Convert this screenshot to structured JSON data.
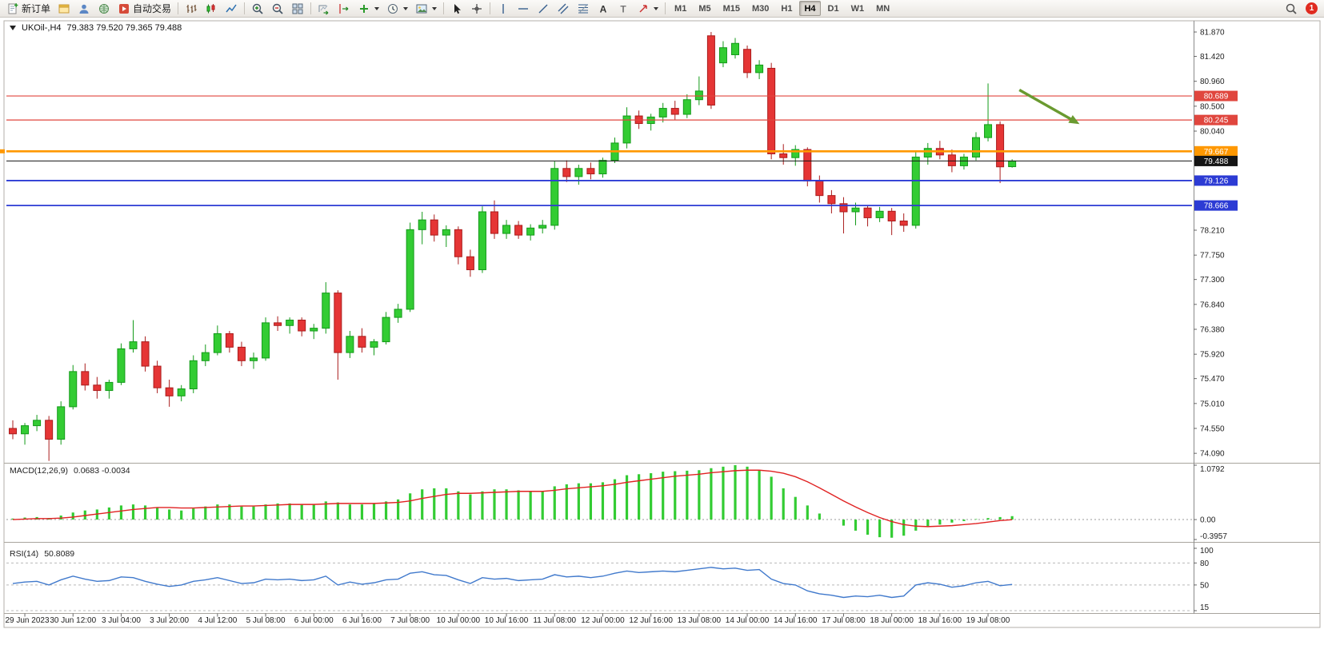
{
  "toolbar": {
    "items": [
      {
        "type": "button",
        "name": "new-order-button",
        "icon": "doc-plus",
        "label": "新订单"
      },
      {
        "type": "button",
        "name": "charts-window-button",
        "icon": "window"
      },
      {
        "type": "button",
        "name": "profiles-button",
        "icon": "person"
      },
      {
        "type": "button",
        "name": "market-watch-button",
        "icon": "globe"
      },
      {
        "type": "button",
        "name": "auto-trading-button",
        "icon": "play",
        "label": "自动交易"
      },
      {
        "type": "sep"
      },
      {
        "type": "button",
        "name": "bar-chart-button",
        "icon": "bars"
      },
      {
        "type": "button",
        "name": "candlestick-chart-button",
        "icon": "candles"
      },
      {
        "type": "button",
        "name": "line-chart-button",
        "icon": "linechart"
      },
      {
        "type": "sep"
      },
      {
        "type": "button",
        "name": "zoom-in-button",
        "icon": "zoom-in"
      },
      {
        "type": "button",
        "name": "zoom-out-button",
        "icon": "zoom-out"
      },
      {
        "type": "button",
        "name": "tile-windows-button",
        "icon": "tile"
      },
      {
        "type": "sep"
      },
      {
        "type": "button",
        "name": "auto-scroll-button",
        "icon": "autoscroll"
      },
      {
        "type": "button",
        "name": "chart-shift-button",
        "icon": "chartshift"
      },
      {
        "type": "button",
        "name": "indicators-button",
        "icon": "plus-green",
        "caret": true
      },
      {
        "type": "button",
        "name": "periods-button",
        "icon": "clock",
        "caret": true
      },
      {
        "type": "button",
        "name": "templates-button",
        "icon": "picture",
        "caret": true
      },
      {
        "type": "sep"
      },
      {
        "type": "button",
        "name": "cursor-tool-button",
        "icon": "cursor"
      },
      {
        "type": "button",
        "name": "crosshair-tool-button",
        "icon": "crosshair"
      },
      {
        "type": "sep"
      },
      {
        "type": "button",
        "name": "vertical-line-tool-button",
        "icon": "vline"
      },
      {
        "type": "button",
        "name": "horizontal-line-tool-button",
        "icon": "hline"
      },
      {
        "type": "button",
        "name": "trendline-tool-button",
        "icon": "tline"
      },
      {
        "type": "button",
        "name": "equidistant-channel-tool-button",
        "icon": "channel"
      },
      {
        "type": "button",
        "name": "fibonacci-tool-button",
        "icon": "fibo"
      },
      {
        "type": "button",
        "name": "text-tool-button",
        "icon": "text-a"
      },
      {
        "type": "button",
        "name": "text-label-tool-button",
        "icon": "label-t"
      },
      {
        "type": "button",
        "name": "arrows-tool-button",
        "icon": "arrow-tool",
        "caret": true
      },
      {
        "type": "sep"
      },
      {
        "type": "timeframes"
      }
    ],
    "timeframes": [
      "M1",
      "M5",
      "M15",
      "M30",
      "H1",
      "H4",
      "D1",
      "W1",
      "MN"
    ],
    "active_timeframe": "H4",
    "notification_count": "1"
  },
  "chart_data": [
    {
      "type": "candlestick",
      "symbol_period": "UKOil-,H4",
      "ohlc_display": "79.383 79.520 79.365 79.488",
      "ylim": [
        73.93,
        81.9
      ],
      "y_tick_labels": [
        "81.870",
        "81.420",
        "80.960",
        "80.500",
        "80.040",
        "78.210",
        "77.750",
        "77.300",
        "76.840",
        "76.380",
        "75.920",
        "75.470",
        "75.010",
        "74.550",
        "74.090"
      ],
      "x_tick_labels": [
        [
          1,
          "29 Jun 2023"
        ],
        [
          5,
          "30 Jun 12:00"
        ],
        [
          9,
          "3 Jul 04:00"
        ],
        [
          13,
          "3 Jul 20:00"
        ],
        [
          17,
          "4 Jul 12:00"
        ],
        [
          21,
          "5 Jul 08:00"
        ],
        [
          25,
          "6 Jul 00:00"
        ],
        [
          29,
          "6 Jul 16:00"
        ],
        [
          33,
          "7 Jul 08:00"
        ],
        [
          37,
          "10 Jul 00:00"
        ],
        [
          41,
          "10 Jul 16:00"
        ],
        [
          45,
          "11 Jul 08:00"
        ],
        [
          49,
          "12 Jul 00:00"
        ],
        [
          53,
          "12 Jul 16:00"
        ],
        [
          57,
          "13 Jul 08:00"
        ],
        [
          61,
          "14 Jul 00:00"
        ],
        [
          65,
          "14 Jul 16:00"
        ],
        [
          69,
          "17 Jul 08:00"
        ],
        [
          73,
          "18 Jul 00:00"
        ],
        [
          77,
          "18 Jul 16:00"
        ],
        [
          81,
          "19 Jul 08:00"
        ]
      ],
      "candles": [
        [
          74.55,
          74.7,
          74.35,
          74.45
        ],
        [
          74.45,
          74.65,
          74.25,
          74.6
        ],
        [
          74.6,
          74.8,
          74.5,
          74.7
        ],
        [
          74.7,
          74.78,
          73.95,
          74.35
        ],
        [
          74.35,
          75.05,
          74.25,
          74.95
        ],
        [
          74.95,
          75.72,
          74.9,
          75.6
        ],
        [
          75.6,
          75.75,
          75.25,
          75.35
        ],
        [
          75.35,
          75.5,
          75.1,
          75.25
        ],
        [
          75.25,
          75.45,
          75.1,
          75.4
        ],
        [
          75.4,
          76.12,
          75.35,
          76.02
        ],
        [
          76.02,
          76.55,
          75.95,
          76.15
        ],
        [
          76.15,
          76.25,
          75.6,
          75.7
        ],
        [
          75.7,
          75.8,
          75.2,
          75.3
        ],
        [
          75.3,
          75.45,
          74.95,
          75.15
        ],
        [
          75.15,
          75.35,
          75.05,
          75.28
        ],
        [
          75.28,
          75.9,
          75.2,
          75.8
        ],
        [
          75.8,
          76.1,
          75.7,
          75.95
        ],
        [
          75.95,
          76.45,
          75.9,
          76.3
        ],
        [
          76.3,
          76.35,
          75.95,
          76.05
        ],
        [
          76.05,
          76.15,
          75.7,
          75.8
        ],
        [
          75.8,
          75.95,
          75.65,
          75.85
        ],
        [
          75.85,
          76.6,
          75.8,
          76.5
        ],
        [
          76.5,
          76.62,
          76.35,
          76.45
        ],
        [
          76.45,
          76.6,
          76.3,
          76.55
        ],
        [
          76.55,
          76.6,
          76.25,
          76.35
        ],
        [
          76.35,
          76.48,
          76.2,
          76.4
        ],
        [
          76.4,
          77.25,
          76.3,
          77.05
        ],
        [
          77.05,
          77.1,
          75.45,
          75.95
        ],
        [
          75.95,
          76.35,
          75.85,
          76.25
        ],
        [
          76.25,
          76.4,
          75.95,
          76.05
        ],
        [
          76.05,
          76.2,
          75.9,
          76.15
        ],
        [
          76.15,
          76.7,
          76.1,
          76.6
        ],
        [
          76.6,
          76.85,
          76.5,
          76.75
        ],
        [
          76.75,
          78.35,
          76.7,
          78.22
        ],
        [
          78.22,
          78.55,
          77.95,
          78.4
        ],
        [
          78.4,
          78.5,
          78.0,
          78.12
        ],
        [
          78.12,
          78.3,
          77.9,
          78.22
        ],
        [
          78.22,
          78.28,
          77.58,
          77.72
        ],
        [
          77.72,
          77.85,
          77.35,
          77.48
        ],
        [
          77.48,
          78.65,
          77.42,
          78.55
        ],
        [
          78.55,
          78.76,
          78.05,
          78.15
        ],
        [
          78.15,
          78.4,
          78.05,
          78.3
        ],
        [
          78.3,
          78.38,
          78.05,
          78.12
        ],
        [
          78.12,
          78.32,
          78.02,
          78.25
        ],
        [
          78.25,
          78.4,
          78.15,
          78.3
        ],
        [
          78.3,
          79.48,
          78.22,
          79.35
        ],
        [
          79.35,
          79.5,
          79.1,
          79.2
        ],
        [
          79.2,
          79.42,
          79.05,
          79.35
        ],
        [
          79.35,
          79.46,
          79.15,
          79.25
        ],
        [
          79.25,
          79.55,
          79.18,
          79.5
        ],
        [
          79.5,
          79.92,
          79.45,
          79.82
        ],
        [
          79.82,
          80.48,
          79.72,
          80.32
        ],
        [
          80.32,
          80.42,
          80.08,
          80.18
        ],
        [
          80.18,
          80.36,
          80.05,
          80.3
        ],
        [
          80.3,
          80.56,
          80.2,
          80.46
        ],
        [
          80.46,
          80.6,
          80.25,
          80.35
        ],
        [
          80.35,
          80.72,
          80.28,
          80.62
        ],
        [
          80.62,
          81.05,
          80.52,
          80.78
        ],
        [
          81.8,
          81.87,
          80.45,
          80.52
        ],
        [
          81.3,
          81.7,
          81.22,
          81.58
        ],
        [
          81.45,
          81.76,
          81.38,
          81.66
        ],
        [
          81.55,
          81.62,
          81.02,
          81.12
        ],
        [
          81.12,
          81.35,
          81.0,
          81.26
        ],
        [
          81.2,
          81.3,
          79.52,
          79.62
        ],
        [
          79.62,
          79.8,
          79.42,
          79.55
        ],
        [
          79.55,
          79.78,
          79.4,
          79.7
        ],
        [
          79.7,
          79.74,
          79.02,
          79.12
        ],
        [
          79.12,
          79.22,
          78.72,
          78.85
        ],
        [
          78.85,
          78.95,
          78.52,
          78.7
        ],
        [
          78.7,
          78.82,
          78.15,
          78.55
        ],
        [
          78.55,
          78.72,
          78.3,
          78.62
        ],
        [
          78.62,
          78.66,
          78.28,
          78.44
        ],
        [
          78.44,
          78.64,
          78.36,
          78.56
        ],
        [
          78.56,
          78.62,
          78.12,
          78.38
        ],
        [
          78.38,
          78.52,
          78.18,
          78.3
        ],
        [
          78.3,
          79.66,
          78.24,
          79.56
        ],
        [
          79.56,
          79.82,
          79.42,
          79.72
        ],
        [
          79.72,
          79.86,
          79.52,
          79.6
        ],
        [
          79.6,
          79.7,
          79.28,
          79.4
        ],
        [
          79.4,
          79.62,
          79.33,
          79.56
        ],
        [
          79.56,
          80.02,
          79.5,
          79.92
        ],
        [
          79.92,
          80.92,
          79.85,
          80.16
        ],
        [
          80.16,
          80.22,
          79.08,
          79.38
        ],
        [
          79.383,
          79.52,
          79.365,
          79.488
        ]
      ],
      "up_color": "#33cc33",
      "down_color": "#e53535",
      "up_stroke": "#139a19",
      "down_stroke": "#aa1c1c",
      "levels": [
        {
          "price": 80.689,
          "label": "80.689",
          "color": "#e0463e",
          "width": 1.2
        },
        {
          "price": 80.245,
          "label": "80.245",
          "color": "#e0463e",
          "width": 1.2
        },
        {
          "price": 79.667,
          "label": "79.667",
          "color": "#ff9800",
          "width": 2.6,
          "anchor": true
        },
        {
          "price": 79.126,
          "label": "79.126",
          "color": "#2c3bd4",
          "width": 1.8
        },
        {
          "price": 78.666,
          "label": "78.666",
          "color": "#2c3bd4",
          "width": 1.8
        }
      ],
      "bid_line": {
        "price": 79.488,
        "label": "79.488",
        "color": "#151515",
        "width": 1
      },
      "trend_arrow": {
        "from": {
          "index": 83.6,
          "price": 80.8
        },
        "to": {
          "index": 88.6,
          "price": 80.17
        },
        "color": "#6a9a30"
      }
    },
    {
      "type": "bar",
      "name": "MACD(12,26,9)",
      "values_display": "0.0683 -0.0034",
      "ylim": [
        -0.3957,
        1.0792
      ],
      "y_tick_labels": [
        "1.0792",
        "0.00",
        "-0.3957"
      ],
      "histogram": [
        0.02,
        0.04,
        0.05,
        0.03,
        0.08,
        0.14,
        0.18,
        0.2,
        0.24,
        0.28,
        0.3,
        0.28,
        0.24,
        0.2,
        0.18,
        0.22,
        0.26,
        0.3,
        0.3,
        0.26,
        0.26,
        0.3,
        0.32,
        0.32,
        0.3,
        0.3,
        0.36,
        0.34,
        0.3,
        0.3,
        0.32,
        0.36,
        0.4,
        0.52,
        0.6,
        0.62,
        0.62,
        0.56,
        0.5,
        0.56,
        0.6,
        0.6,
        0.58,
        0.56,
        0.56,
        0.66,
        0.7,
        0.72,
        0.72,
        0.74,
        0.8,
        0.88,
        0.9,
        0.92,
        0.95,
        0.96,
        0.97,
        0.98,
        1.02,
        1.05,
        1.08,
        1.05,
        0.98,
        0.85,
        0.62,
        0.45,
        0.28,
        0.12,
        0.0,
        -0.12,
        -0.22,
        -0.3,
        -0.35,
        -0.36,
        -0.32,
        -0.22,
        -0.15,
        -0.1,
        -0.06,
        -0.03,
        0.01,
        0.03,
        0.05,
        0.068
      ],
      "signal": [
        0.0,
        0.01,
        0.02,
        0.02,
        0.03,
        0.05,
        0.08,
        0.11,
        0.14,
        0.17,
        0.2,
        0.22,
        0.24,
        0.24,
        0.23,
        0.23,
        0.24,
        0.25,
        0.26,
        0.27,
        0.27,
        0.28,
        0.29,
        0.3,
        0.3,
        0.3,
        0.31,
        0.32,
        0.32,
        0.32,
        0.32,
        0.33,
        0.34,
        0.37,
        0.42,
        0.46,
        0.5,
        0.52,
        0.52,
        0.53,
        0.54,
        0.55,
        0.56,
        0.56,
        0.56,
        0.58,
        0.61,
        0.63,
        0.65,
        0.67,
        0.7,
        0.74,
        0.77,
        0.8,
        0.83,
        0.86,
        0.88,
        0.9,
        0.93,
        0.95,
        0.97,
        0.98,
        0.98,
        0.96,
        0.92,
        0.85,
        0.75,
        0.63,
        0.5,
        0.37,
        0.25,
        0.14,
        0.04,
        -0.04,
        -0.1,
        -0.13,
        -0.14,
        -0.13,
        -0.12,
        -0.1,
        -0.08,
        -0.05,
        -0.02,
        -0.003
      ],
      "histogram_color": "#33cc33",
      "signal_color": "#e02222"
    },
    {
      "type": "line",
      "name": "RSI(14)",
      "value_display": "50.8089",
      "ylim": [
        15,
        100
      ],
      "y_tick_labels": [
        "100",
        "80",
        "50",
        "15"
      ],
      "levels": [
        80,
        50,
        15
      ],
      "values": [
        52,
        54,
        55,
        50,
        57,
        62,
        58,
        55,
        56,
        61,
        60,
        55,
        51,
        48,
        50,
        55,
        57,
        60,
        56,
        52,
        53,
        58,
        57,
        58,
        56,
        57,
        62,
        50,
        54,
        51,
        53,
        57,
        58,
        66,
        68,
        64,
        63,
        57,
        52,
        60,
        58,
        59,
        56,
        57,
        58,
        64,
        61,
        62,
        60,
        62,
        66,
        69,
        67,
        68,
        69,
        68,
        70,
        72,
        74,
        72,
        73,
        70,
        71,
        58,
        52,
        50,
        42,
        38,
        36,
        33,
        35,
        34,
        36,
        33,
        35,
        50,
        53,
        51,
        47,
        49,
        53,
        55,
        49,
        50.8
      ],
      "line_color": "#4079cc"
    }
  ]
}
